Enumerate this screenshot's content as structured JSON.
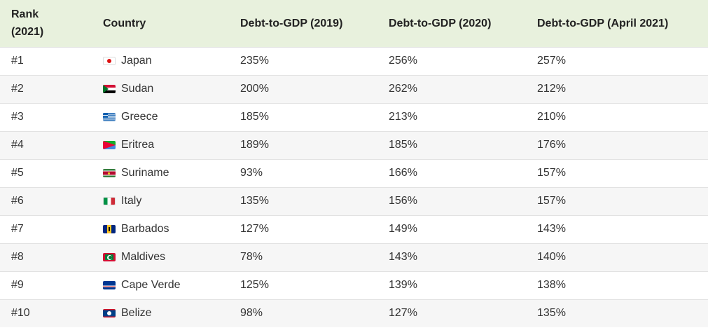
{
  "header": {
    "rank_line1": "Rank",
    "rank_line2": "(2021)",
    "country": "Country",
    "debt_2019": "Debt-to-GDP (2019)",
    "debt_2020": "Debt-to-GDP (2020)",
    "debt_2021": "Debt-to-GDP (April 2021)"
  },
  "rows": [
    {
      "rank": "#1",
      "country": "Japan",
      "flag": "japan-flag-icon",
      "d2019": "235%",
      "d2020": "256%",
      "d2021": "257%"
    },
    {
      "rank": "#2",
      "country": "Sudan",
      "flag": "sudan-flag-icon",
      "d2019": "200%",
      "d2020": "262%",
      "d2021": "212%"
    },
    {
      "rank": "#3",
      "country": "Greece",
      "flag": "greece-flag-icon",
      "d2019": "185%",
      "d2020": "213%",
      "d2021": "210%"
    },
    {
      "rank": "#4",
      "country": "Eritrea",
      "flag": "eritrea-flag-icon",
      "d2019": "189%",
      "d2020": "185%",
      "d2021": "176%"
    },
    {
      "rank": "#5",
      "country": "Suriname",
      "flag": "suriname-flag-icon",
      "d2019": "93%",
      "d2020": "166%",
      "d2021": "157%"
    },
    {
      "rank": "#6",
      "country": "Italy",
      "flag": "italy-flag-icon",
      "d2019": "135%",
      "d2020": "156%",
      "d2021": "157%"
    },
    {
      "rank": "#7",
      "country": "Barbados",
      "flag": "barbados-flag-icon",
      "d2019": "127%",
      "d2020": "149%",
      "d2021": "143%"
    },
    {
      "rank": "#8",
      "country": "Maldives",
      "flag": "maldives-flag-icon",
      "d2019": "78%",
      "d2020": "143%",
      "d2021": "140%"
    },
    {
      "rank": "#9",
      "country": "Cape Verde",
      "flag": "cape-verde-flag-icon",
      "d2019": "125%",
      "d2020": "139%",
      "d2021": "138%"
    },
    {
      "rank": "#10",
      "country": "Belize",
      "flag": "belize-flag-icon",
      "d2019": "98%",
      "d2020": "127%",
      "d2021": "135%"
    }
  ],
  "colors": {
    "header_bg": "#e8f1dd",
    "stripe_bg": "#f6f6f6",
    "row_border": "#e2e2e2"
  }
}
